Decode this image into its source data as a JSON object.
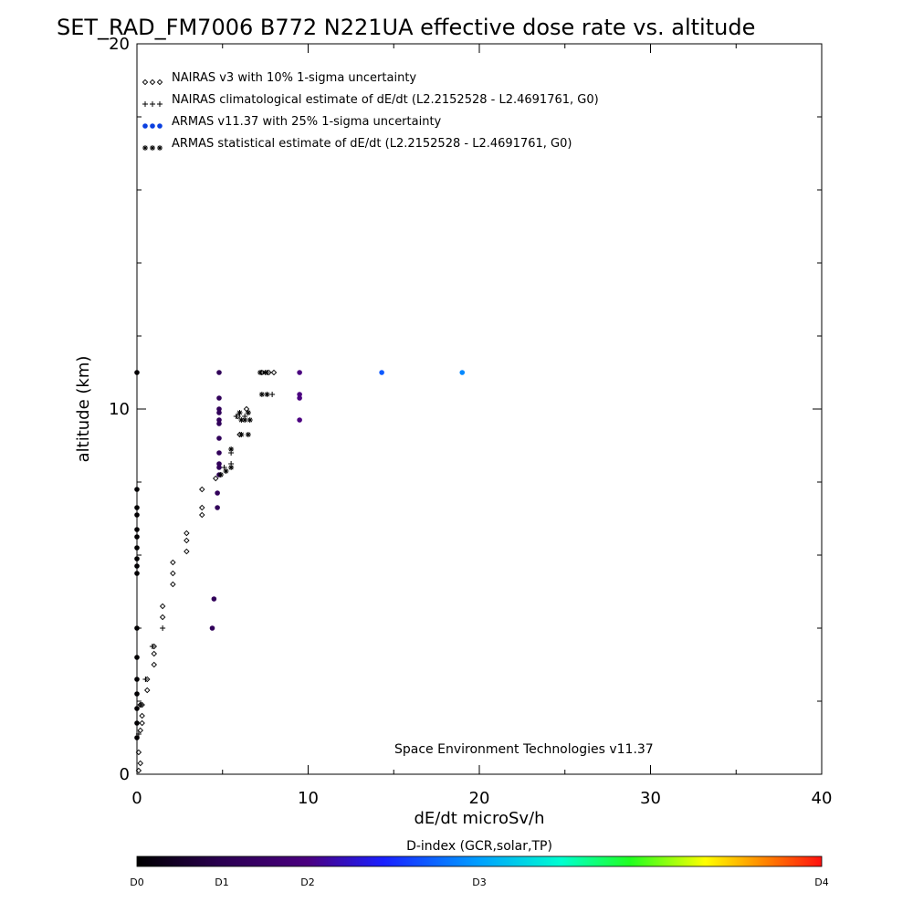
{
  "chart_data": {
    "type": "scatter",
    "title": "SET_RAD_FM7006  B772 N221UA effective dose rate vs. altitude",
    "xlabel": "dE/dt microSv/h",
    "ylabel": "altitude (km)",
    "xlim": [
      0,
      40
    ],
    "ylim": [
      0,
      20
    ],
    "x_ticks": [
      "0",
      "10",
      "20",
      "30",
      "40"
    ],
    "y_ticks": [
      "0",
      "10",
      "20"
    ],
    "legend_position": "top-left",
    "grid": false,
    "credit": "Space Environment Technologies v11.37",
    "colorbar": {
      "title": "D-index (GCR,solar,TP)",
      "labels": [
        {
          "text": "D0",
          "value": 0
        },
        {
          "text": "D1",
          "value": 1
        },
        {
          "text": "D2",
          "value": 2
        },
        {
          "text": "D3",
          "value": 3
        },
        {
          "text": "D4",
          "value": 4
        }
      ],
      "colors": [
        "#000000",
        "#4b0080",
        "#0000ff",
        "#00ffff",
        "#00ff00",
        "#ffff00",
        "#ff0000"
      ]
    },
    "series": [
      {
        "name": "NAIRAS v3 with 10% 1-sigma uncertainty",
        "marker": "diamond",
        "color": "#000000",
        "points": [
          [
            0.1,
            0.1
          ],
          [
            0.2,
            0.3
          ],
          [
            0.1,
            0.6
          ],
          [
            0.2,
            1.2
          ],
          [
            0.3,
            1.4
          ],
          [
            0.3,
            1.6
          ],
          [
            0.2,
            1.9
          ],
          [
            0.3,
            1.9
          ],
          [
            0.6,
            2.3
          ],
          [
            0.6,
            2.6
          ],
          [
            1.0,
            3.0
          ],
          [
            1.0,
            3.3
          ],
          [
            1.0,
            3.5
          ],
          [
            1.5,
            4.3
          ],
          [
            1.5,
            4.6
          ],
          [
            2.1,
            5.2
          ],
          [
            2.1,
            5.5
          ],
          [
            2.1,
            5.8
          ],
          [
            2.9,
            6.1
          ],
          [
            2.9,
            6.4
          ],
          [
            2.9,
            6.6
          ],
          [
            3.8,
            7.1
          ],
          [
            3.8,
            7.3
          ],
          [
            3.8,
            7.8
          ],
          [
            4.6,
            8.1
          ],
          [
            6.0,
            9.3
          ],
          [
            5.9,
            9.8
          ],
          [
            6.4,
            10.0
          ],
          [
            7.3,
            11.0
          ],
          [
            7.7,
            11.0
          ],
          [
            8.0,
            11.0
          ]
        ]
      },
      {
        "name": "NAIRAS climatological estimate of dE/dt (L2.2152528 - L2.4691761, G0)",
        "marker": "plus",
        "color": "#000000",
        "points": [
          [
            0.1,
            1.1
          ],
          [
            0.2,
            1.9
          ],
          [
            0.5,
            2.6
          ],
          [
            0.9,
            3.5
          ],
          [
            1.5,
            4.0
          ],
          [
            4.9,
            8.2
          ],
          [
            5.1,
            8.4
          ],
          [
            5.5,
            8.5
          ],
          [
            5.5,
            8.8
          ],
          [
            5.8,
            9.8
          ],
          [
            6.3,
            9.8
          ],
          [
            6.5,
            9.9
          ],
          [
            7.2,
            11.0
          ],
          [
            7.6,
            11.0
          ],
          [
            7.9,
            10.4
          ]
        ]
      },
      {
        "name": "ARMAS v11.37 with 25% 1-sigma uncertainty",
        "marker": "dot",
        "color": "#0a3fe0",
        "points": [
          {
            "x": 0.0,
            "y": 1.0,
            "d": 0.02
          },
          {
            "x": 0.0,
            "y": 1.4,
            "d": 0.02
          },
          {
            "x": 0.0,
            "y": 1.8,
            "d": 0.02
          },
          {
            "x": 0.0,
            "y": 2.2,
            "d": 0.02
          },
          {
            "x": 0.0,
            "y": 2.6,
            "d": 0.02
          },
          {
            "x": 0.0,
            "y": 3.2,
            "d": 0.02
          },
          {
            "x": 0.0,
            "y": 4.0,
            "d": 0.02
          },
          {
            "x": 0.0,
            "y": 5.5,
            "d": 0.02
          },
          {
            "x": 0.0,
            "y": 5.7,
            "d": 0.02
          },
          {
            "x": 0.0,
            "y": 5.9,
            "d": 0.02
          },
          {
            "x": 0.0,
            "y": 6.2,
            "d": 0.02
          },
          {
            "x": 0.0,
            "y": 6.5,
            "d": 0.02
          },
          {
            "x": 0.0,
            "y": 6.7,
            "d": 0.02
          },
          {
            "x": 0.0,
            "y": 7.1,
            "d": 0.02
          },
          {
            "x": 0.0,
            "y": 7.3,
            "d": 0.02
          },
          {
            "x": 0.0,
            "y": 7.8,
            "d": 0.02
          },
          {
            "x": 0.0,
            "y": 11.0,
            "d": 0.02
          },
          {
            "x": 4.4,
            "y": 4.0,
            "d": 0.6
          },
          {
            "x": 4.5,
            "y": 4.8,
            "d": 0.6
          },
          {
            "x": 4.7,
            "y": 7.3,
            "d": 0.6
          },
          {
            "x": 4.7,
            "y": 7.7,
            "d": 0.6
          },
          {
            "x": 4.8,
            "y": 8.2,
            "d": 0.6
          },
          {
            "x": 4.8,
            "y": 8.4,
            "d": 0.6
          },
          {
            "x": 4.8,
            "y": 8.5,
            "d": 0.6
          },
          {
            "x": 4.8,
            "y": 8.8,
            "d": 0.6
          },
          {
            "x": 4.8,
            "y": 9.2,
            "d": 0.6
          },
          {
            "x": 4.8,
            "y": 9.6,
            "d": 0.6
          },
          {
            "x": 4.8,
            "y": 9.7,
            "d": 0.6
          },
          {
            "x": 4.8,
            "y": 9.9,
            "d": 0.6
          },
          {
            "x": 4.8,
            "y": 10.0,
            "d": 0.6
          },
          {
            "x": 4.8,
            "y": 10.3,
            "d": 0.6
          },
          {
            "x": 4.8,
            "y": 11.0,
            "d": 0.6
          },
          {
            "x": 9.5,
            "y": 9.7,
            "d": 1.0
          },
          {
            "x": 9.5,
            "y": 10.3,
            "d": 1.0
          },
          {
            "x": 9.5,
            "y": 10.4,
            "d": 1.0
          },
          {
            "x": 9.5,
            "y": 11.0,
            "d": 1.0
          },
          {
            "x": 14.3,
            "y": 11.0,
            "d": 1.7
          },
          {
            "x": 19.0,
            "y": 11.0,
            "d": 1.9
          }
        ]
      },
      {
        "name": "ARMAS statistical estimate of dE/dt (L2.2152528 - L2.4691761, G0)",
        "marker": "asterisk",
        "color": "#000000",
        "points": [
          [
            4.9,
            8.2
          ],
          [
            5.2,
            8.3
          ],
          [
            5.5,
            8.4
          ],
          [
            5.5,
            8.9
          ],
          [
            6.1,
            9.3
          ],
          [
            6.5,
            9.3
          ],
          [
            6.1,
            9.7
          ],
          [
            6.3,
            9.7
          ],
          [
            6.6,
            9.7
          ],
          [
            6.0,
            9.9
          ],
          [
            6.5,
            9.9
          ],
          [
            7.3,
            10.4
          ],
          [
            7.6,
            10.4
          ],
          [
            7.2,
            11.0
          ],
          [
            7.5,
            11.0
          ]
        ]
      }
    ]
  }
}
